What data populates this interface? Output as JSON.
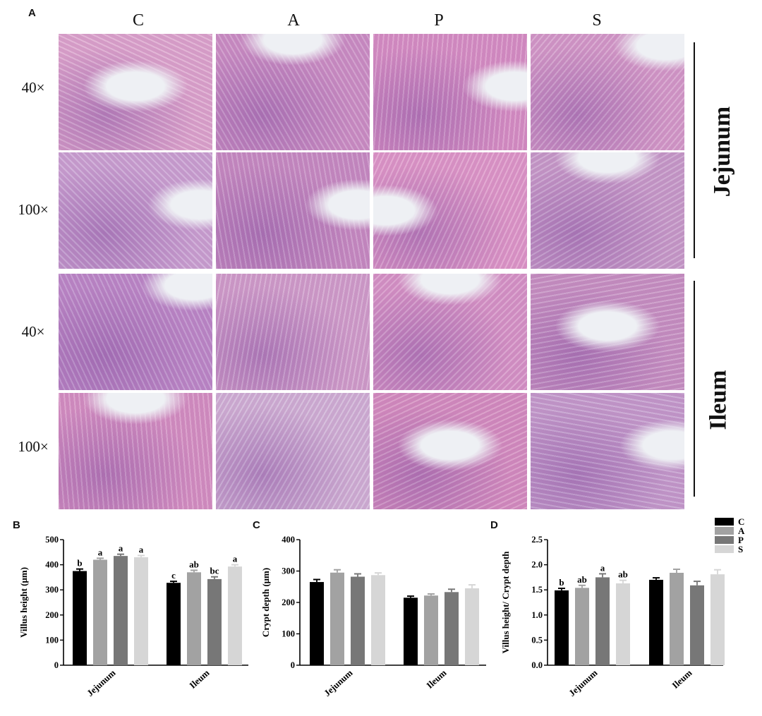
{
  "panel_labels": {
    "a": "A",
    "b": "B",
    "c": "C",
    "d": "D"
  },
  "micrographs": {
    "columns": [
      "C",
      "A",
      "P",
      "S"
    ],
    "rows": [
      "40×",
      "100×",
      "40×",
      "100×"
    ],
    "regions": [
      "Jejunum",
      "Ileum"
    ],
    "colors": {
      "tissue_pink": "#d98fc0",
      "nuclei_purple": "#8e5ba8",
      "lumen": "#eef0f4",
      "background": "#f3eef4"
    },
    "tiles": [
      {
        "row": 0,
        "col": 0,
        "lumen": "center",
        "tone": "#dca6cd"
      },
      {
        "row": 0,
        "col": 1,
        "lumen": "top",
        "tone": "#c98fc4"
      },
      {
        "row": 0,
        "col": 2,
        "lumen": "right",
        "tone": "#d58fc4"
      },
      {
        "row": 0,
        "col": 3,
        "lumen": "top-right",
        "tone": "#d29ac8"
      },
      {
        "row": 1,
        "col": 0,
        "lumen": "right",
        "tone": "#c8a2d2"
      },
      {
        "row": 1,
        "col": 1,
        "lumen": "right",
        "tone": "#c48bc1"
      },
      {
        "row": 1,
        "col": 2,
        "lumen": "left",
        "tone": "#dd98c8"
      },
      {
        "row": 1,
        "col": 3,
        "lumen": "top",
        "tone": "#c59bc9"
      },
      {
        "row": 2,
        "col": 0,
        "lumen": "top-right",
        "tone": "#b988c7"
      },
      {
        "row": 2,
        "col": 1,
        "lumen": "none",
        "tone": "#cf9fcb"
      },
      {
        "row": 2,
        "col": 2,
        "lumen": "top",
        "tone": "#d594c6"
      },
      {
        "row": 2,
        "col": 3,
        "lumen": "center",
        "tone": "#c591c2"
      },
      {
        "row": 3,
        "col": 0,
        "lumen": "top",
        "tone": "#d390c2"
      },
      {
        "row": 3,
        "col": 1,
        "lumen": "none",
        "tone": "#cfb3d6"
      },
      {
        "row": 3,
        "col": 2,
        "lumen": "center",
        "tone": "#d38dbf"
      },
      {
        "row": 3,
        "col": 3,
        "lumen": "right",
        "tone": "#c29ccc"
      }
    ]
  },
  "legend": {
    "entries": [
      "C",
      "A",
      "P",
      "S"
    ],
    "colors": [
      "#000000",
      "#a2a2a2",
      "#777777",
      "#d6d6d6"
    ],
    "placement": "top-right"
  },
  "chart_data": [
    {
      "type": "bar",
      "panel": "B",
      "title": "",
      "xlabel": "",
      "ylabel": "Villus height (μm)",
      "ylim": [
        0,
        500
      ],
      "yticks": [
        "0",
        "100",
        "200",
        "300",
        "400",
        "500"
      ],
      "categories": [
        "Jejunum",
        "Ileum"
      ],
      "series": [
        {
          "name": "C",
          "values": [
            375,
            328
          ],
          "errors": [
            8,
            6
          ],
          "letters": [
            "b",
            "c"
          ]
        },
        {
          "name": "A",
          "values": [
            420,
            370
          ],
          "errors": [
            6,
            8
          ],
          "letters": [
            "a",
            "ab"
          ]
        },
        {
          "name": "P",
          "values": [
            435,
            343
          ],
          "errors": [
            7,
            9
          ],
          "letters": [
            "a",
            "bc"
          ]
        },
        {
          "name": "S",
          "values": [
            430,
            393
          ],
          "errors": [
            7,
            7
          ],
          "letters": [
            "a",
            "a"
          ]
        }
      ]
    },
    {
      "type": "bar",
      "panel": "C",
      "title": "",
      "xlabel": "",
      "ylabel": "Crypt depth (μm)",
      "ylim": [
        0,
        400
      ],
      "yticks": [
        "0",
        "100",
        "200",
        "300",
        "400"
      ],
      "categories": [
        "Jejunum",
        "Ileum"
      ],
      "series": [
        {
          "name": "C",
          "values": [
            265,
            215
          ],
          "errors": [
            8,
            5
          ],
          "letters": [
            "",
            ""
          ]
        },
        {
          "name": "A",
          "values": [
            295,
            222
          ],
          "errors": [
            9,
            5
          ],
          "letters": [
            "",
            ""
          ]
        },
        {
          "name": "P",
          "values": [
            282,
            233
          ],
          "errors": [
            9,
            9
          ],
          "letters": [
            "",
            ""
          ]
        },
        {
          "name": "S",
          "values": [
            287,
            245
          ],
          "errors": [
            7,
            11
          ],
          "letters": [
            "",
            ""
          ]
        }
      ]
    },
    {
      "type": "bar",
      "panel": "D",
      "title": "",
      "xlabel": "",
      "ylabel": "Villus height/ Crypt depth",
      "ylim": [
        0,
        2.5
      ],
      "yticks": [
        "0.0",
        "0.5",
        "1.0",
        "1.5",
        "2.0",
        "2.5"
      ],
      "categories": [
        "Jejunum",
        "Ileum"
      ],
      "series": [
        {
          "name": "C",
          "values": [
            1.49,
            1.7
          ],
          "errors": [
            0.04,
            0.04
          ],
          "letters": [
            "b",
            ""
          ]
        },
        {
          "name": "A",
          "values": [
            1.54,
            1.84
          ],
          "errors": [
            0.05,
            0.07
          ],
          "letters": [
            "ab",
            ""
          ]
        },
        {
          "name": "P",
          "values": [
            1.75,
            1.59
          ],
          "errors": [
            0.07,
            0.08
          ],
          "letters": [
            "a",
            ""
          ]
        },
        {
          "name": "S",
          "values": [
            1.63,
            1.81
          ],
          "errors": [
            0.06,
            0.09
          ],
          "letters": [
            "ab",
            ""
          ]
        }
      ]
    }
  ]
}
